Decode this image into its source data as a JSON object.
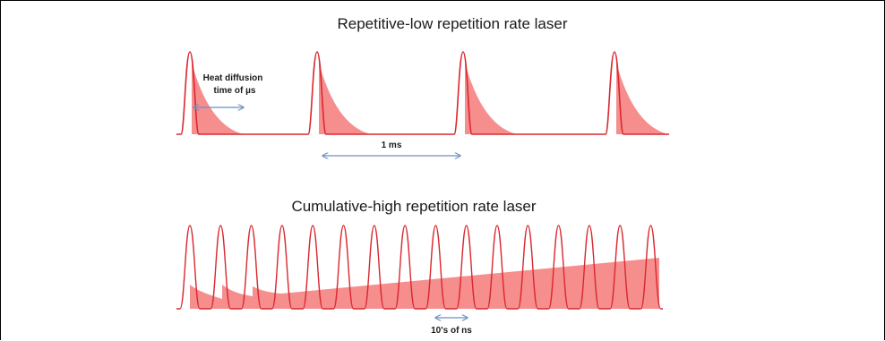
{
  "top_panel": {
    "title": "Repetitive-low repetition rate laser",
    "heat_label_line1": "Heat diffusion",
    "heat_label_line2": "time of µs",
    "period_label": "1 ms"
  },
  "bottom_panel": {
    "title": "Cumulative-high repetition rate laser",
    "period_label": "10's of ns"
  },
  "colors": {
    "pulse_line": "#d9282f",
    "heat_fill": "#f47a7a",
    "arrow": "#6b8fc4",
    "text": "#1a1a1a"
  }
}
